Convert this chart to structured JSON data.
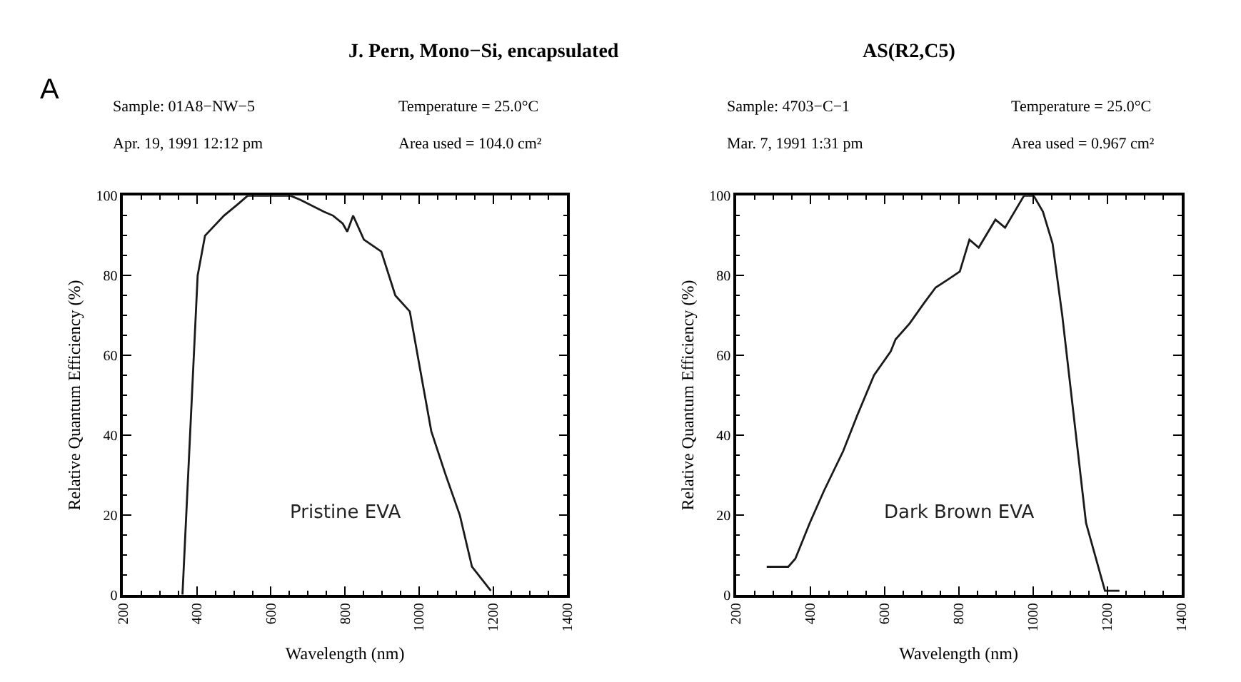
{
  "chart_data": [
    {
      "type": "line",
      "title": "J. Pern, Mono−Si, encapsulated",
      "xlabel": "Wavelength (nm)",
      "ylabel": "Relative Quantum Efficiency (%)",
      "annotations": [
        "A",
        "Sample: 01A8−NW−5",
        "Temperature = 25.0°C",
        "Apr. 19, 1991 12:12 pm",
        "Area used = 104.0 cm²",
        "Pristine EVA"
      ],
      "x": [
        361,
        402,
        422,
        473,
        512,
        537,
        653,
        679,
        743,
        768,
        794,
        806,
        822,
        851,
        898,
        936,
        975,
        1000,
        1033,
        1072,
        1110,
        1143,
        1194
      ],
      "series": [
        {
          "color": "#1a1a1a",
          "values": [
            0,
            80,
            90,
            95,
            98,
            100,
            100,
            99,
            96,
            95,
            93,
            91,
            95,
            89,
            86,
            75,
            71,
            58,
            41,
            30,
            20,
            7,
            1
          ]
        }
      ],
      "xlim": [
        200,
        1400
      ],
      "xticks": [
        200,
        400,
        600,
        800,
        1000,
        1200,
        1400
      ],
      "ylim": [
        0,
        100
      ],
      "yticks": [
        0,
        20,
        40,
        60,
        80,
        100
      ],
      "line_style": "solid"
    },
    {
      "type": "line",
      "title": "AS(R2,C5)",
      "xlabel": "Wavelength (nm)",
      "ylabel": "Relative Quantum Efficiency (%)",
      "annotations": [
        "Sample: 4703−C−1",
        "Temperature = 25.0°C",
        "Mar. 7, 1991 1:31 pm",
        "Area used = 0.967 cm²",
        "Dark Brown EVA"
      ],
      "x": [
        283,
        341,
        360,
        399,
        437,
        489,
        527,
        572,
        617,
        630,
        668,
        706,
        738,
        771,
        803,
        829,
        854,
        899,
        925,
        976,
        1002,
        1027,
        1053,
        1079,
        1143,
        1194,
        1233
      ],
      "series": [
        {
          "color": "#1a1a1a",
          "values": [
            7,
            7,
            9,
            18,
            26,
            36,
            45,
            55,
            61,
            64,
            68,
            73,
            77,
            79,
            81,
            89,
            87,
            94,
            92,
            100,
            100,
            96,
            88,
            70,
            18,
            1,
            1
          ]
        }
      ],
      "xlim": [
        200,
        1400
      ],
      "xticks": [
        200,
        400,
        600,
        800,
        1000,
        1200,
        1400
      ],
      "ylim": [
        0,
        100
      ],
      "yticks": [
        0,
        20,
        40,
        60,
        80,
        100
      ],
      "line_style": "solid"
    }
  ]
}
